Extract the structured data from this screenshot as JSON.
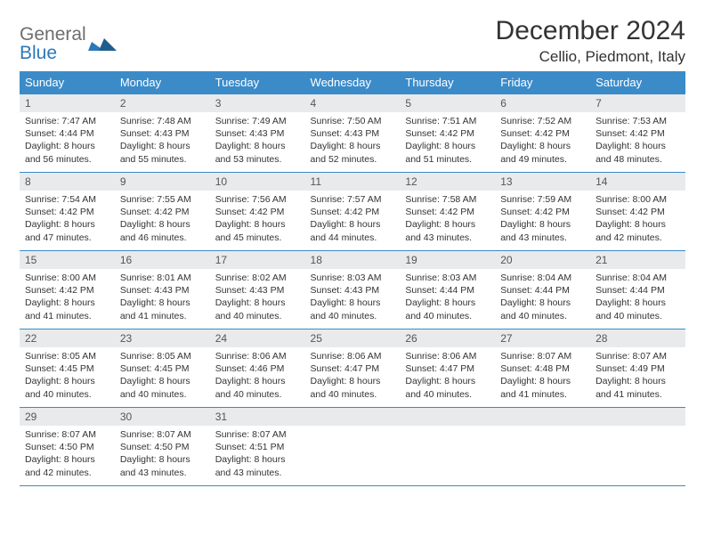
{
  "brand": {
    "part1": "General",
    "part2": "Blue"
  },
  "title": "December 2024",
  "location": "Cellio, Piedmont, Italy",
  "colors": {
    "header_bg": "#3b8bc9",
    "header_text": "#ffffff",
    "daynum_bg": "#e9eaeb",
    "rule": "#3b8bc9",
    "text": "#333333",
    "logo_gray": "#6e6e6e",
    "logo_blue": "#2b79b9"
  },
  "weekdays": [
    "Sunday",
    "Monday",
    "Tuesday",
    "Wednesday",
    "Thursday",
    "Friday",
    "Saturday"
  ],
  "weeks": [
    [
      {
        "n": "1",
        "sunrise": "7:47 AM",
        "sunset": "4:44 PM",
        "day_h": "8",
        "day_m": "56"
      },
      {
        "n": "2",
        "sunrise": "7:48 AM",
        "sunset": "4:43 PM",
        "day_h": "8",
        "day_m": "55"
      },
      {
        "n": "3",
        "sunrise": "7:49 AM",
        "sunset": "4:43 PM",
        "day_h": "8",
        "day_m": "53"
      },
      {
        "n": "4",
        "sunrise": "7:50 AM",
        "sunset": "4:43 PM",
        "day_h": "8",
        "day_m": "52"
      },
      {
        "n": "5",
        "sunrise": "7:51 AM",
        "sunset": "4:42 PM",
        "day_h": "8",
        "day_m": "51"
      },
      {
        "n": "6",
        "sunrise": "7:52 AM",
        "sunset": "4:42 PM",
        "day_h": "8",
        "day_m": "49"
      },
      {
        "n": "7",
        "sunrise": "7:53 AM",
        "sunset": "4:42 PM",
        "day_h": "8",
        "day_m": "48"
      }
    ],
    [
      {
        "n": "8",
        "sunrise": "7:54 AM",
        "sunset": "4:42 PM",
        "day_h": "8",
        "day_m": "47"
      },
      {
        "n": "9",
        "sunrise": "7:55 AM",
        "sunset": "4:42 PM",
        "day_h": "8",
        "day_m": "46"
      },
      {
        "n": "10",
        "sunrise": "7:56 AM",
        "sunset": "4:42 PM",
        "day_h": "8",
        "day_m": "45"
      },
      {
        "n": "11",
        "sunrise": "7:57 AM",
        "sunset": "4:42 PM",
        "day_h": "8",
        "day_m": "44"
      },
      {
        "n": "12",
        "sunrise": "7:58 AM",
        "sunset": "4:42 PM",
        "day_h": "8",
        "day_m": "43"
      },
      {
        "n": "13",
        "sunrise": "7:59 AM",
        "sunset": "4:42 PM",
        "day_h": "8",
        "day_m": "43"
      },
      {
        "n": "14",
        "sunrise": "8:00 AM",
        "sunset": "4:42 PM",
        "day_h": "8",
        "day_m": "42"
      }
    ],
    [
      {
        "n": "15",
        "sunrise": "8:00 AM",
        "sunset": "4:42 PM",
        "day_h": "8",
        "day_m": "41"
      },
      {
        "n": "16",
        "sunrise": "8:01 AM",
        "sunset": "4:43 PM",
        "day_h": "8",
        "day_m": "41"
      },
      {
        "n": "17",
        "sunrise": "8:02 AM",
        "sunset": "4:43 PM",
        "day_h": "8",
        "day_m": "40"
      },
      {
        "n": "18",
        "sunrise": "8:03 AM",
        "sunset": "4:43 PM",
        "day_h": "8",
        "day_m": "40"
      },
      {
        "n": "19",
        "sunrise": "8:03 AM",
        "sunset": "4:44 PM",
        "day_h": "8",
        "day_m": "40"
      },
      {
        "n": "20",
        "sunrise": "8:04 AM",
        "sunset": "4:44 PM",
        "day_h": "8",
        "day_m": "40"
      },
      {
        "n": "21",
        "sunrise": "8:04 AM",
        "sunset": "4:44 PM",
        "day_h": "8",
        "day_m": "40"
      }
    ],
    [
      {
        "n": "22",
        "sunrise": "8:05 AM",
        "sunset": "4:45 PM",
        "day_h": "8",
        "day_m": "40"
      },
      {
        "n": "23",
        "sunrise": "8:05 AM",
        "sunset": "4:45 PM",
        "day_h": "8",
        "day_m": "40"
      },
      {
        "n": "24",
        "sunrise": "8:06 AM",
        "sunset": "4:46 PM",
        "day_h": "8",
        "day_m": "40"
      },
      {
        "n": "25",
        "sunrise": "8:06 AM",
        "sunset": "4:47 PM",
        "day_h": "8",
        "day_m": "40"
      },
      {
        "n": "26",
        "sunrise": "8:06 AM",
        "sunset": "4:47 PM",
        "day_h": "8",
        "day_m": "40"
      },
      {
        "n": "27",
        "sunrise": "8:07 AM",
        "sunset": "4:48 PM",
        "day_h": "8",
        "day_m": "41"
      },
      {
        "n": "28",
        "sunrise": "8:07 AM",
        "sunset": "4:49 PM",
        "day_h": "8",
        "day_m": "41"
      }
    ],
    [
      {
        "n": "29",
        "sunrise": "8:07 AM",
        "sunset": "4:50 PM",
        "day_h": "8",
        "day_m": "42"
      },
      {
        "n": "30",
        "sunrise": "8:07 AM",
        "sunset": "4:50 PM",
        "day_h": "8",
        "day_m": "43"
      },
      {
        "n": "31",
        "sunrise": "8:07 AM",
        "sunset": "4:51 PM",
        "day_h": "8",
        "day_m": "43"
      },
      null,
      null,
      null,
      null
    ]
  ],
  "labels": {
    "sunrise": "Sunrise:",
    "sunset": "Sunset:",
    "daylight_prefix": "Daylight:",
    "hours_word": "hours",
    "and_word": "and",
    "minutes_suffix": "minutes."
  }
}
